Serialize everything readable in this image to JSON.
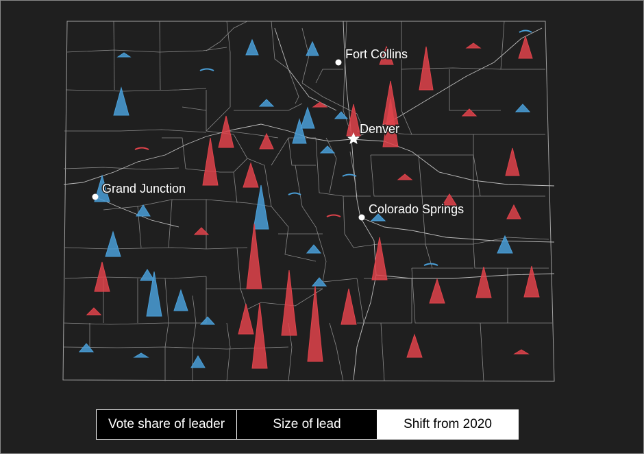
{
  "colors": {
    "background": "#1f1f1f",
    "county_line": "#8a8a8a",
    "road_line": "#bdbdbd",
    "democrat_shift": "#4a9fd8",
    "republican_shift": "#e0434b"
  },
  "cities": [
    {
      "name": "Fort Collins",
      "marker": "dot"
    },
    {
      "name": "Denver",
      "marker": "star"
    },
    {
      "name": "Grand Junction",
      "marker": "dot"
    },
    {
      "name": "Colorado Springs",
      "marker": "dot"
    }
  ],
  "tabs": [
    {
      "label": "Vote share of leader",
      "active": false
    },
    {
      "label": "Size of lead",
      "active": false
    },
    {
      "label": "Shift from 2020",
      "active": true
    }
  ]
}
